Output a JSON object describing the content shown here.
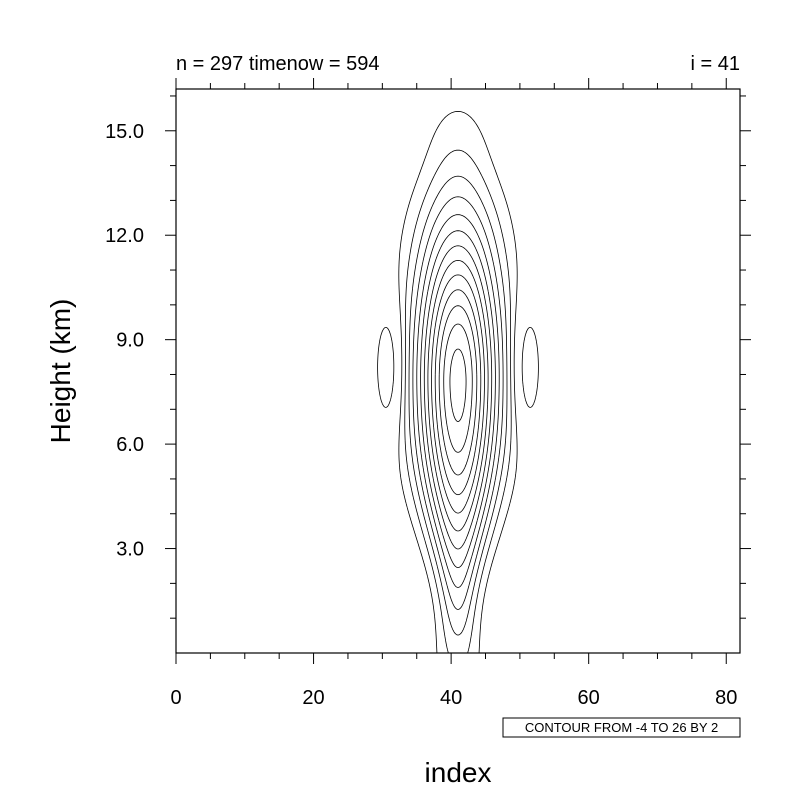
{
  "chart_data": {
    "type": "contour",
    "title_left": "n = 297 timenow = 594",
    "title_right": "i = 41",
    "xlabel": "index",
    "ylabel": "Height (km)",
    "xlim": [
      0,
      82
    ],
    "ylim": [
      0,
      16.2
    ],
    "x_ticks": [
      0,
      20,
      40,
      60,
      80
    ],
    "x_tick_labels": [
      "0",
      "20",
      "40",
      "60",
      "80"
    ],
    "y_ticks": [
      3,
      6,
      9,
      12,
      15
    ],
    "y_tick_labels": [
      "3.0",
      "6.0",
      "9.0",
      "12.0",
      "15.0"
    ],
    "contour_info": "CONTOUR FROM -4 TO 26 BY 2",
    "contour_levels": {
      "min": -4,
      "max": 26,
      "step": 2
    },
    "field_center": {
      "x": 41,
      "height_km": 7.8
    },
    "negative_lobes_x": [
      31,
      51
    ],
    "line_color": "#000000"
  }
}
